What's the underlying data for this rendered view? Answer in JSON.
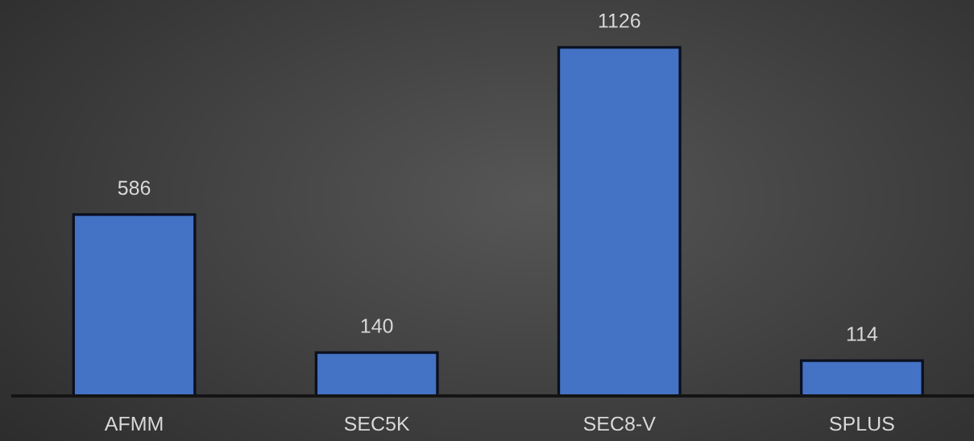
{
  "chart_data": {
    "type": "bar",
    "categories": [
      "AFMM",
      "SEC5K",
      "SEC8-V",
      "SPLUS"
    ],
    "values": [
      586,
      140,
      1126,
      114
    ],
    "color": "#4472c4",
    "data_labels": true
  }
}
